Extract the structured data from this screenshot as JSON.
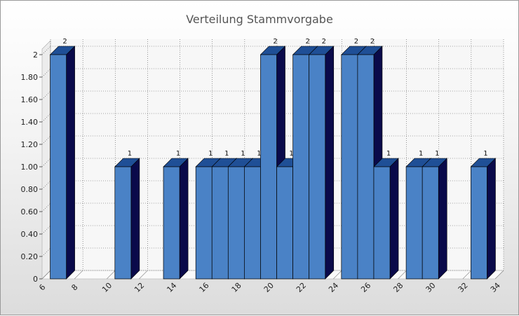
{
  "chart_data": {
    "type": "bar",
    "title": "Verteilung Stammvorgabe",
    "xlabel": "",
    "ylabel": "",
    "xlim": [
      6,
      34
    ],
    "ylim": [
      0,
      2
    ],
    "x_ticks": [
      "6",
      "8",
      "10",
      "12",
      "14",
      "16",
      "18",
      "20",
      "22",
      "24",
      "26",
      "28",
      "30",
      "32",
      "34"
    ],
    "y_ticks": [
      "0",
      "0.20",
      "0.40",
      "0.60",
      "0.80",
      "1.00",
      "1.20",
      "1.40",
      "1.60",
      "1.80",
      "2"
    ],
    "grid": true,
    "bars": [
      {
        "x": 7,
        "value": 2,
        "label": "2"
      },
      {
        "x": 11,
        "value": 1,
        "label": "1"
      },
      {
        "x": 14,
        "value": 1,
        "label": "1"
      },
      {
        "x": 16,
        "value": 1,
        "label": "1"
      },
      {
        "x": 17,
        "value": 1,
        "label": "1"
      },
      {
        "x": 18,
        "value": 1,
        "label": "1"
      },
      {
        "x": 19,
        "value": 1,
        "label": "1"
      },
      {
        "x": 20,
        "value": 2,
        "label": "2"
      },
      {
        "x": 21,
        "value": 1,
        "label": "1"
      },
      {
        "x": 22,
        "value": 2,
        "label": "2"
      },
      {
        "x": 23,
        "value": 2,
        "label": "2"
      },
      {
        "x": 25,
        "value": 2,
        "label": "2"
      },
      {
        "x": 26,
        "value": 2,
        "label": "2"
      },
      {
        "x": 27,
        "value": 1,
        "label": "1"
      },
      {
        "x": 29,
        "value": 1,
        "label": "1"
      },
      {
        "x": 30,
        "value": 1,
        "label": "1"
      },
      {
        "x": 33,
        "value": 1,
        "label": "1"
      }
    ],
    "colors": {
      "front": "#4a82c6",
      "side": "#0a0a4a",
      "top": "#1f4f96"
    }
  }
}
